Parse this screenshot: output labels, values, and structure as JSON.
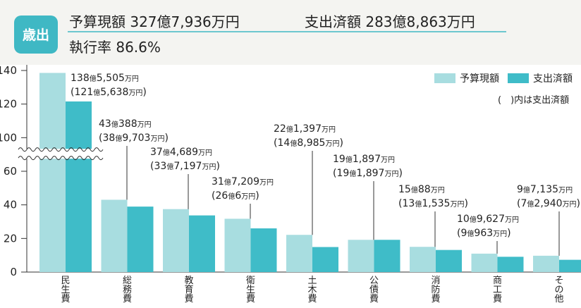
{
  "header": {
    "badge": "歳出",
    "budget": "予算現額 327億7,936万円",
    "spent": "支出済額 283億8,863万円",
    "rate": "執行率 86.6%"
  },
  "chart_data": {
    "type": "bar",
    "categories": [
      "民生費",
      "総務費",
      "教育費",
      "衛生費",
      "土木費",
      "公債費",
      "消防費",
      "商工費",
      "その他"
    ],
    "series": [
      {
        "name": "予算現額",
        "color": "#a8dde0",
        "values": [
          138.5505,
          43.0388,
          37.4689,
          31.7209,
          22.1397,
          19.1897,
          15.0088,
          10.9627,
          9.7135
        ],
        "value_labels": [
          "138億5,505万円",
          "43億388万円",
          "37億4,689万円",
          "31億7,209万円",
          "22億1,397万円",
          "19億1,897万円",
          "15億88万円",
          "10億9,627万円",
          "9億7,135万円"
        ]
      },
      {
        "name": "支出済額",
        "color": "#3fbcc8",
        "values": [
          121.5638,
          38.9703,
          33.7197,
          26.0006,
          14.8985,
          19.1897,
          13.1535,
          9.0963,
          7.294
        ],
        "value_labels": [
          "(121億5,638万円)",
          "(38億9,703万円)",
          "(33億7,197万円)",
          "(26億6万円)",
          "(14億8,985万円)",
          "(19億1,897万円)",
          "(13億1,535万円)",
          "(9億963万円)",
          "(7億2,940万円)"
        ]
      }
    ],
    "ylim": [
      0,
      140
    ],
    "yticks": [
      0,
      20,
      40,
      60,
      100,
      120,
      140
    ],
    "ybreak": [
      70,
      90
    ],
    "note": "(　)内は支出済額"
  }
}
